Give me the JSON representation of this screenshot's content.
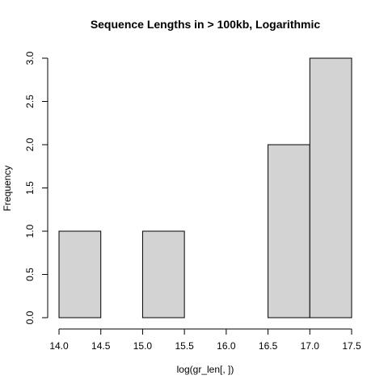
{
  "chart_data": {
    "type": "bar",
    "title": "Sequence Lengths in > 100kb, Logarithmic",
    "xlabel": "log(gr_len[, ])",
    "ylabel": "Frequency",
    "bins": [
      {
        "from": 14.0,
        "to": 14.5,
        "count": 1
      },
      {
        "from": 14.5,
        "to": 15.0,
        "count": 0
      },
      {
        "from": 15.0,
        "to": 15.5,
        "count": 1
      },
      {
        "from": 15.5,
        "to": 16.0,
        "count": 0
      },
      {
        "from": 16.0,
        "to": 16.5,
        "count": 0
      },
      {
        "from": 16.5,
        "to": 17.0,
        "count": 2
      },
      {
        "from": 17.0,
        "to": 17.5,
        "count": 3
      }
    ],
    "xlim": [
      14.0,
      17.5
    ],
    "ylim": [
      0,
      3.0
    ],
    "x_ticks": [
      "14.0",
      "14.5",
      "15.0",
      "15.5",
      "16.0",
      "16.5",
      "17.0",
      "17.5"
    ],
    "y_ticks": [
      "0.0",
      "0.5",
      "1.0",
      "1.5",
      "2.0",
      "2.5",
      "3.0"
    ],
    "grid": false,
    "bar_fill": "#d3d3d3",
    "bar_stroke": "#000000"
  }
}
